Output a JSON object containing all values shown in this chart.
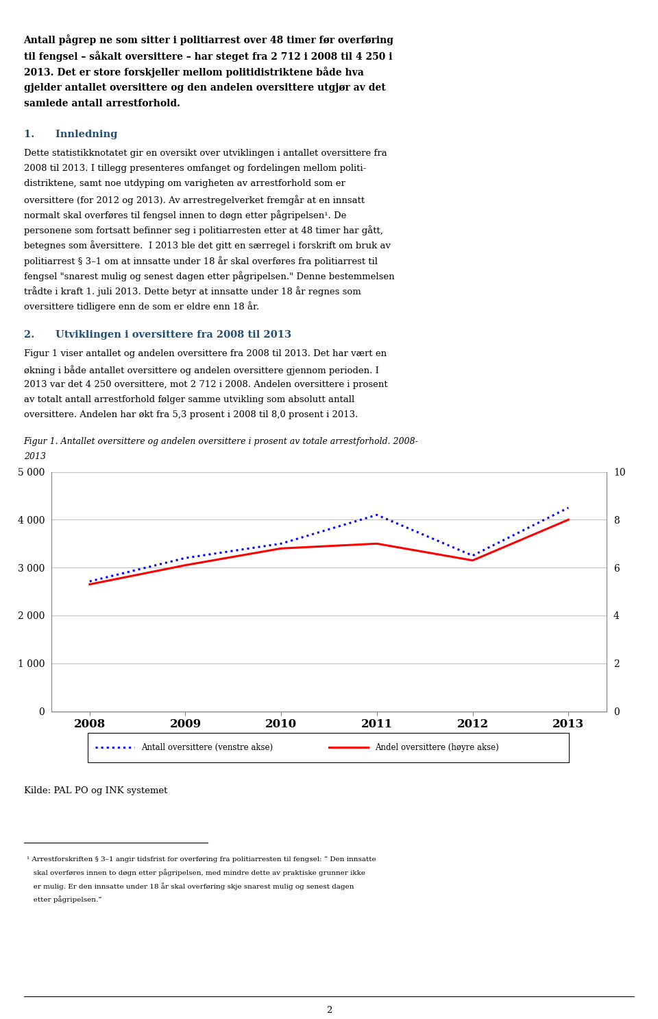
{
  "years": [
    2008,
    2009,
    2010,
    2011,
    2012,
    2013
  ],
  "antall": [
    2712,
    3200,
    3500,
    4100,
    3250,
    4250
  ],
  "andel": [
    5.3,
    6.1,
    6.8,
    7.0,
    6.3,
    8.0
  ],
  "left_ylim": [
    0,
    5000
  ],
  "right_ylim": [
    0,
    10
  ],
  "left_yticks": [
    0,
    1000,
    2000,
    3000,
    4000,
    5000
  ],
  "right_yticks": [
    0,
    2,
    4,
    6,
    8,
    10
  ],
  "left_yticklabels": [
    "0",
    "1 000",
    "2 000",
    "3 000",
    "4 000",
    "5 000"
  ],
  "right_yticklabels": [
    "0",
    "2",
    "4",
    "6",
    "8",
    "10"
  ],
  "antall_color": "#0000FF",
  "andel_color": "#FF0000",
  "legend_antall": "Antall oversittere (venstre akse)",
  "legend_andel": "Andel oversittere (høyre akse)",
  "source_text": "Kilde: PAL PO og INK systemet",
  "page_number": "2",
  "background_color": "#FFFFFF",
  "grid_color": "#C0C0C0",
  "tick_fontsize": 10
}
